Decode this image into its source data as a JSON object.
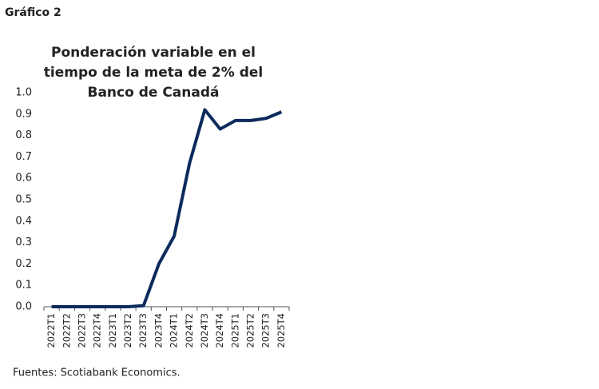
{
  "figure_label": "Gráfico 2",
  "chart_data": {
    "type": "line",
    "title": [
      "Ponderación variable en el",
      "tiempo de la meta de 2% del",
      "Banco de Canadá"
    ],
    "categories": [
      "2022T1",
      "2022T2",
      "2022T3",
      "2022T4",
      "2023T1",
      "2023T2",
      "2023T3",
      "2023T4",
      "2024T1",
      "2024T2",
      "2024T3",
      "2024T4",
      "2025T1",
      "2025T2",
      "2025T3",
      "2025T4"
    ],
    "values": [
      0,
      0,
      0,
      0,
      0,
      0,
      0.005,
      0.2,
      0.33,
      0.67,
      0.92,
      0.83,
      0.87,
      0.87,
      0.88,
      0.91
    ],
    "color": "#0c2a5c",
    "ylim": [
      0,
      1
    ],
    "yticks": [
      {
        "value": 0,
        "label": "0.0"
      },
      0.1,
      0.2,
      0.3,
      0.4,
      0.5,
      0.6,
      0.7,
      0.8,
      0.9,
      {
        "value": 1,
        "label": "1.0"
      }
    ],
    "grid": false
  },
  "source": "Fuentes: Scotiabank Economics."
}
